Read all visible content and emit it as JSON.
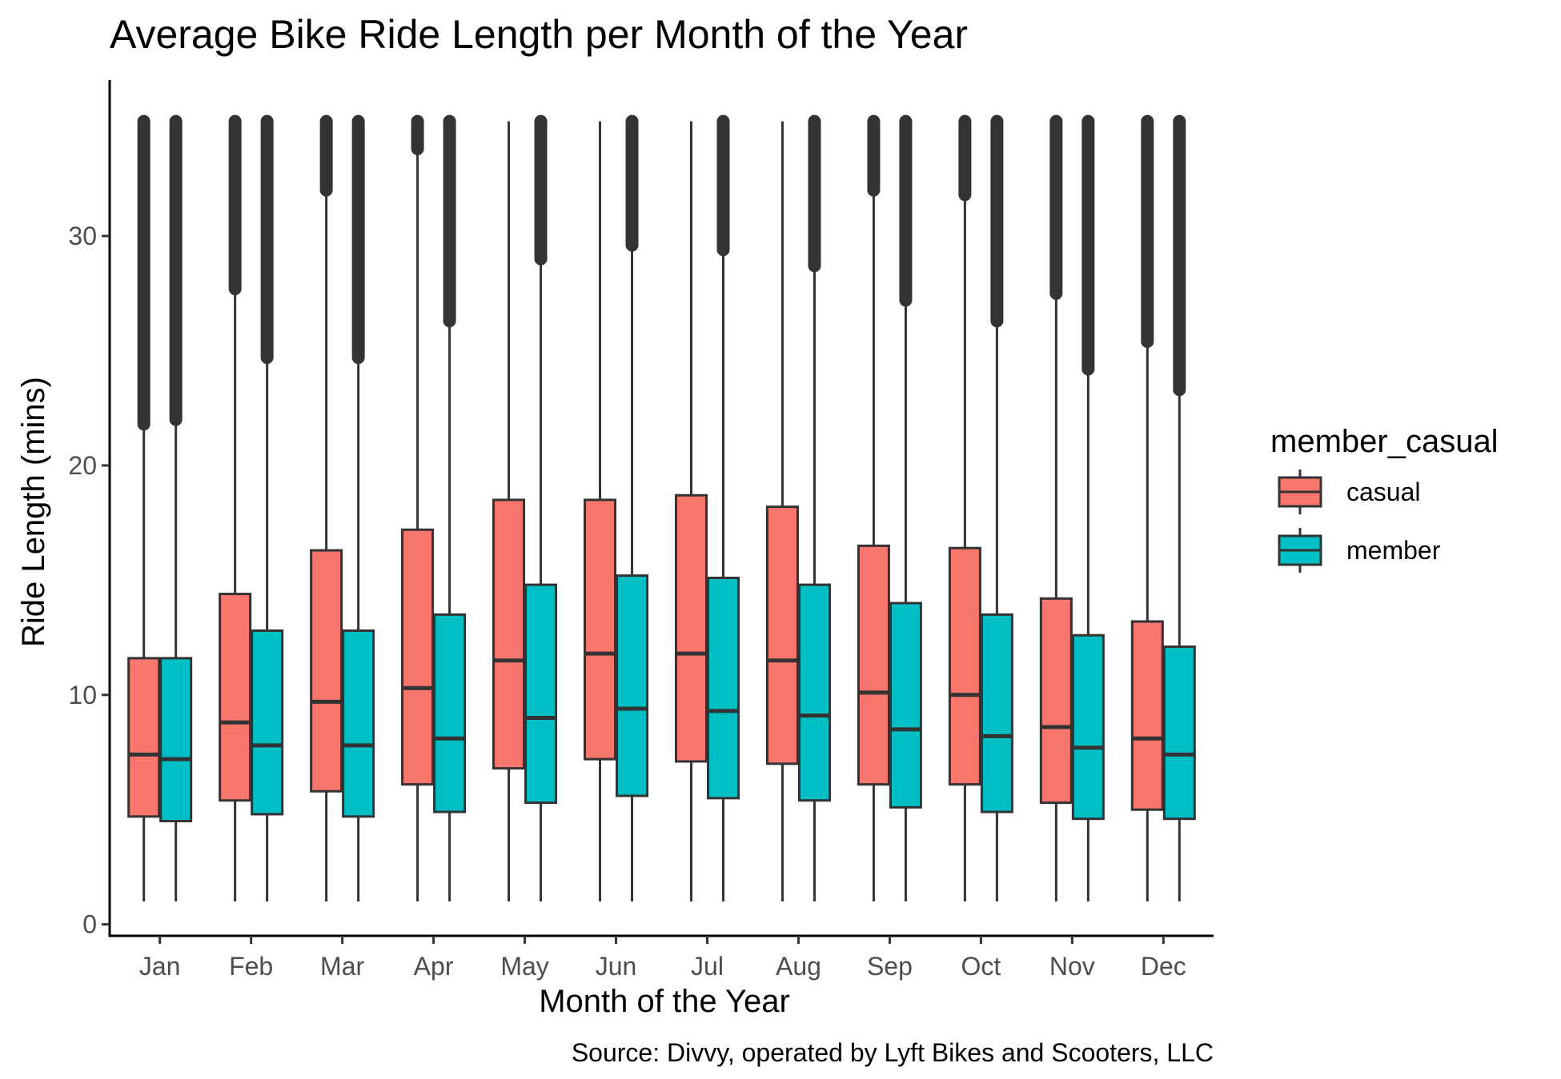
{
  "chart_data": {
    "type": "boxplot",
    "title": "Average Bike Ride Length per Month of the Year",
    "xlabel": "Month of the Year",
    "ylabel": "Ride Length (mins)",
    "caption": "Source: Divvy, operated by Lyft Bikes and Scooters, LLC",
    "ylim": [
      -0.5,
      36.8
    ],
    "yticks": [
      0,
      10,
      20,
      30
    ],
    "grid": false,
    "legend": {
      "title": "member_casual",
      "position": "right"
    },
    "categories": [
      "Jan",
      "Feb",
      "Mar",
      "Apr",
      "May",
      "Jun",
      "Jul",
      "Aug",
      "Sep",
      "Oct",
      "Nov",
      "Dec"
    ],
    "series": [
      {
        "name": "casual",
        "color": "#F8766D",
        "stats": [
          {
            "whisker_low": 1.0,
            "q1": 4.7,
            "median": 7.4,
            "q3": 11.6,
            "whisker_high": 21.8,
            "outliers_from": 21.8,
            "outliers_to": 35.0
          },
          {
            "whisker_low": 1.0,
            "q1": 5.4,
            "median": 8.8,
            "q3": 14.4,
            "whisker_high": 27.7,
            "outliers_from": 27.7,
            "outliers_to": 35.0
          },
          {
            "whisker_low": 1.0,
            "q1": 5.8,
            "median": 9.7,
            "q3": 16.3,
            "whisker_high": 32.0,
            "outliers_from": 32.0,
            "outliers_to": 35.0
          },
          {
            "whisker_low": 1.0,
            "q1": 6.1,
            "median": 10.3,
            "q3": 17.2,
            "whisker_high": 33.8,
            "outliers_from": 33.8,
            "outliers_to": 35.0
          },
          {
            "whisker_low": 1.0,
            "q1": 6.8,
            "median": 11.5,
            "q3": 18.5,
            "whisker_high": 35.0,
            "outliers_from": null,
            "outliers_to": null
          },
          {
            "whisker_low": 1.0,
            "q1": 7.2,
            "median": 11.8,
            "q3": 18.5,
            "whisker_high": 35.0,
            "outliers_from": null,
            "outliers_to": null
          },
          {
            "whisker_low": 1.0,
            "q1": 7.1,
            "median": 11.8,
            "q3": 18.7,
            "whisker_high": 35.0,
            "outliers_from": null,
            "outliers_to": null
          },
          {
            "whisker_low": 1.0,
            "q1": 7.0,
            "median": 11.5,
            "q3": 18.2,
            "whisker_high": 35.0,
            "outliers_from": null,
            "outliers_to": null
          },
          {
            "whisker_low": 1.0,
            "q1": 6.1,
            "median": 10.1,
            "q3": 16.5,
            "whisker_high": 32.0,
            "outliers_from": 32.0,
            "outliers_to": 35.0
          },
          {
            "whisker_low": 1.0,
            "q1": 6.1,
            "median": 10.0,
            "q3": 16.4,
            "whisker_high": 31.8,
            "outliers_from": 31.8,
            "outliers_to": 35.0
          },
          {
            "whisker_low": 1.0,
            "q1": 5.3,
            "median": 8.6,
            "q3": 14.2,
            "whisker_high": 27.5,
            "outliers_from": 27.5,
            "outliers_to": 35.0
          },
          {
            "whisker_low": 1.0,
            "q1": 5.0,
            "median": 8.1,
            "q3": 13.2,
            "whisker_high": 25.4,
            "outliers_from": 25.4,
            "outliers_to": 35.0
          }
        ]
      },
      {
        "name": "member",
        "color": "#00BFC4",
        "stats": [
          {
            "whisker_low": 1.0,
            "q1": 4.5,
            "median": 7.2,
            "q3": 11.6,
            "whisker_high": 22.0,
            "outliers_from": 22.0,
            "outliers_to": 35.0
          },
          {
            "whisker_low": 1.0,
            "q1": 4.8,
            "median": 7.8,
            "q3": 12.8,
            "whisker_high": 24.7,
            "outliers_from": 24.7,
            "outliers_to": 35.0
          },
          {
            "whisker_low": 1.0,
            "q1": 4.7,
            "median": 7.8,
            "q3": 12.8,
            "whisker_high": 24.7,
            "outliers_from": 24.7,
            "outliers_to": 35.0
          },
          {
            "whisker_low": 1.0,
            "q1": 4.9,
            "median": 8.1,
            "q3": 13.5,
            "whisker_high": 26.3,
            "outliers_from": 26.3,
            "outliers_to": 35.0
          },
          {
            "whisker_low": 1.0,
            "q1": 5.3,
            "median": 9.0,
            "q3": 14.8,
            "whisker_high": 29.0,
            "outliers_from": 29.0,
            "outliers_to": 35.0
          },
          {
            "whisker_low": 1.0,
            "q1": 5.6,
            "median": 9.4,
            "q3": 15.2,
            "whisker_high": 29.6,
            "outliers_from": 29.6,
            "outliers_to": 35.0
          },
          {
            "whisker_low": 1.0,
            "q1": 5.5,
            "median": 9.3,
            "q3": 15.1,
            "whisker_high": 29.4,
            "outliers_from": 29.4,
            "outliers_to": 35.0
          },
          {
            "whisker_low": 1.0,
            "q1": 5.4,
            "median": 9.1,
            "q3": 14.8,
            "whisker_high": 28.7,
            "outliers_from": 28.7,
            "outliers_to": 35.0
          },
          {
            "whisker_low": 1.0,
            "q1": 5.1,
            "median": 8.5,
            "q3": 14.0,
            "whisker_high": 27.2,
            "outliers_from": 27.2,
            "outliers_to": 35.0
          },
          {
            "whisker_low": 1.0,
            "q1": 4.9,
            "median": 8.2,
            "q3": 13.5,
            "whisker_high": 26.3,
            "outliers_from": 26.3,
            "outliers_to": 35.0
          },
          {
            "whisker_low": 1.0,
            "q1": 4.6,
            "median": 7.7,
            "q3": 12.6,
            "whisker_high": 24.2,
            "outliers_from": 24.2,
            "outliers_to": 35.0
          },
          {
            "whisker_low": 1.0,
            "q1": 4.6,
            "median": 7.4,
            "q3": 12.1,
            "whisker_high": 23.3,
            "outliers_from": 23.3,
            "outliers_to": 35.0
          }
        ]
      }
    ]
  },
  "style": {
    "outline_color": "#333333",
    "axis_color": "#000000",
    "tick_label_color": "#4d4d4d"
  }
}
